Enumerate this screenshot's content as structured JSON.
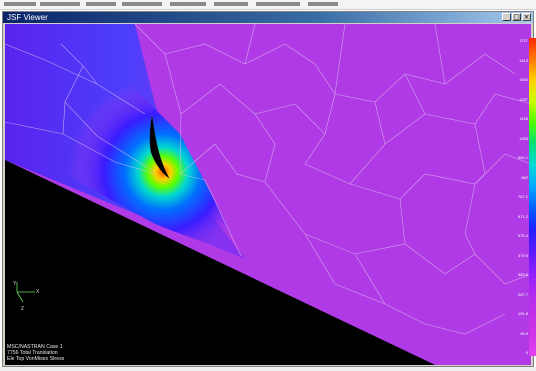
{
  "window": {
    "title": "JSF Viewer",
    "buttons": [
      {
        "name": "minimize",
        "glyph": "_"
      },
      {
        "name": "maximize",
        "glyph": "□"
      },
      {
        "name": "close",
        "glyph": "×"
      }
    ]
  },
  "colors": {
    "background": "#000000",
    "field_main": "#b23be6",
    "mesh_lines": "#e0c4ee",
    "titlebar": "#0a246a"
  },
  "legend": {
    "labels": [
      "1727",
      "1613",
      "1540",
      "1267",
      "1155",
      "1055",
      "950.1",
      "862",
      "767.1",
      "671.2",
      "575.4",
      "479.5",
      "383.6",
      "287.7",
      "191.8",
      "95.9",
      "0"
    ],
    "gradient": [
      "#ff2a00",
      "#ff7a00",
      "#ffd000",
      "#c8ff00",
      "#4cff00",
      "#00e07a",
      "#00d8d8",
      "#00a8ff",
      "#0060ff",
      "#2020ff",
      "#5a1aff",
      "#8a1fff",
      "#b02af0",
      "#c030e8",
      "#d035e8",
      "#e040f0"
    ]
  },
  "axis": {
    "x_label": "X",
    "y_label": "Y",
    "z_label": "Z"
  },
  "info_lines": [
    "MSC/NASTRAN Case 1",
    "7756 Total Translation",
    "Ele Top VonMises Stress"
  ]
}
